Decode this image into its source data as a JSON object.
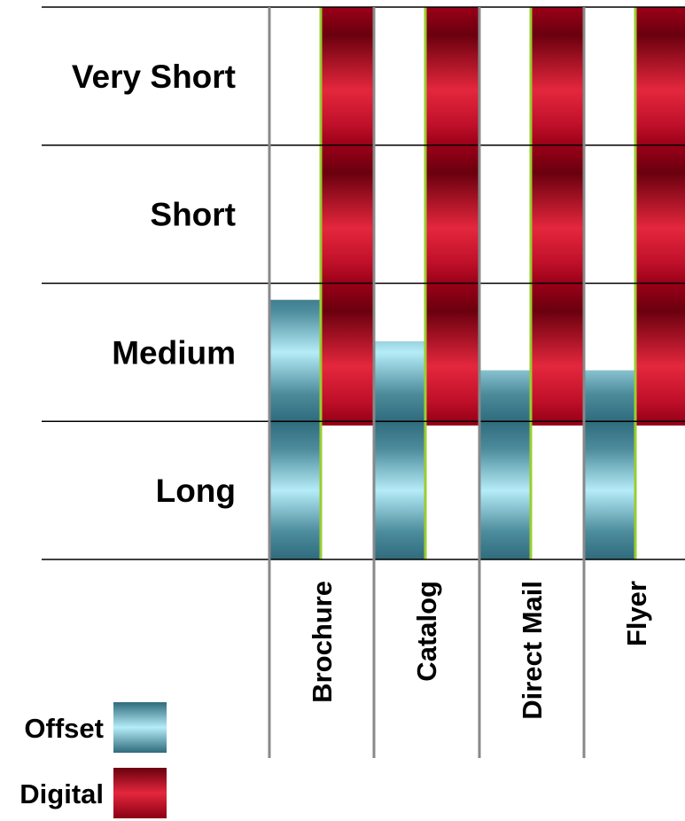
{
  "chart_data": {
    "type": "range_bar",
    "y_categories": [
      "Very Short",
      "Short",
      "Medium",
      "Long"
    ],
    "categories": [
      "Brochure",
      "Catalog",
      "Direct Mail",
      "Flyer"
    ],
    "ylim": [
      0,
      4
    ],
    "yticks": [
      0,
      1,
      2,
      3,
      4
    ],
    "grid": true,
    "series": [
      {
        "name": "Offset",
        "color": "#3f7f8f",
        "extends_from": "bottom",
        "values": [
          1.88,
          1.58,
          1.37,
          1.37
        ]
      },
      {
        "name": "Digital",
        "color": "#b0001c",
        "extends_from": "top",
        "values": [
          0.97,
          0.97,
          0.97,
          0.97
        ]
      }
    ],
    "legend": "bottom-left"
  }
}
